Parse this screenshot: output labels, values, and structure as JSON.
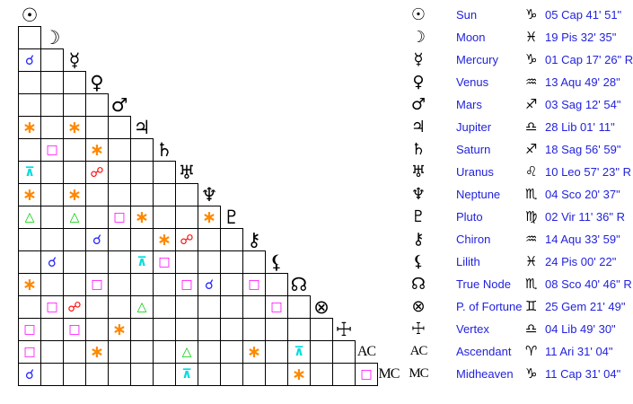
{
  "app": {
    "background": "#ffffff",
    "table_text_color": "#2222dd"
  },
  "aspect_grid": {
    "planets": [
      {
        "id": "sun",
        "glyph": "☉"
      },
      {
        "id": "moon",
        "glyph": "☽"
      },
      {
        "id": "mercury",
        "glyph": "☿"
      },
      {
        "id": "venus",
        "glyph": "♀"
      },
      {
        "id": "mars",
        "glyph": "♂"
      },
      {
        "id": "jupiter",
        "glyph": "♃"
      },
      {
        "id": "saturn",
        "glyph": "♄"
      },
      {
        "id": "uranus",
        "glyph": "♅"
      },
      {
        "id": "neptune",
        "glyph": "♆"
      },
      {
        "id": "pluto",
        "glyph": "♇"
      },
      {
        "id": "chiron",
        "glyph": "⚷"
      },
      {
        "id": "lilith",
        "glyph": "⚸"
      },
      {
        "id": "true-node",
        "glyph": "☊"
      },
      {
        "id": "fortune",
        "glyph": "⊗"
      },
      {
        "id": "vertex",
        "glyph": "☩"
      },
      {
        "id": "ascendant",
        "glyph": "AC"
      },
      {
        "id": "midheaven",
        "glyph": "MC"
      }
    ],
    "aspect_glyphs": {
      "conjunction": "☌",
      "sextile": "∗",
      "square": "□",
      "trine": "△",
      "opposition": "☍",
      "quincunx": "⊼"
    },
    "aspect_colors": {
      "conjunction": "#2222ff",
      "sextile": "#ff8800",
      "square": "#ff00ff",
      "trine": "#00cc00",
      "opposition": "#ff0000",
      "quincunx": "#00dddd"
    },
    "aspects": [
      {
        "row": 2,
        "col": 0,
        "type": "conjunction"
      },
      {
        "row": 5,
        "col": 0,
        "type": "sextile"
      },
      {
        "row": 5,
        "col": 2,
        "type": "sextile"
      },
      {
        "row": 6,
        "col": 1,
        "type": "square"
      },
      {
        "row": 6,
        "col": 3,
        "type": "sextile"
      },
      {
        "row": 7,
        "col": 0,
        "type": "quincunx"
      },
      {
        "row": 7,
        "col": 3,
        "type": "opposition"
      },
      {
        "row": 8,
        "col": 0,
        "type": "sextile"
      },
      {
        "row": 8,
        "col": 2,
        "type": "sextile"
      },
      {
        "row": 9,
        "col": 0,
        "type": "trine"
      },
      {
        "row": 9,
        "col": 2,
        "type": "trine"
      },
      {
        "row": 9,
        "col": 4,
        "type": "square"
      },
      {
        "row": 9,
        "col": 5,
        "type": "sextile"
      },
      {
        "row": 9,
        "col": 8,
        "type": "sextile"
      },
      {
        "row": 10,
        "col": 3,
        "type": "conjunction"
      },
      {
        "row": 10,
        "col": 6,
        "type": "sextile"
      },
      {
        "row": 10,
        "col": 7,
        "type": "opposition"
      },
      {
        "row": 11,
        "col": 1,
        "type": "conjunction"
      },
      {
        "row": 11,
        "col": 5,
        "type": "quincunx"
      },
      {
        "row": 11,
        "col": 6,
        "type": "square"
      },
      {
        "row": 12,
        "col": 0,
        "type": "sextile"
      },
      {
        "row": 12,
        "col": 3,
        "type": "square"
      },
      {
        "row": 12,
        "col": 7,
        "type": "square"
      },
      {
        "row": 12,
        "col": 8,
        "type": "conjunction"
      },
      {
        "row": 12,
        "col": 10,
        "type": "square"
      },
      {
        "row": 13,
        "col": 1,
        "type": "square"
      },
      {
        "row": 13,
        "col": 2,
        "type": "opposition"
      },
      {
        "row": 13,
        "col": 5,
        "type": "trine"
      },
      {
        "row": 13,
        "col": 11,
        "type": "square"
      },
      {
        "row": 14,
        "col": 0,
        "type": "square"
      },
      {
        "row": 14,
        "col": 2,
        "type": "square"
      },
      {
        "row": 14,
        "col": 4,
        "type": "sextile"
      },
      {
        "row": 15,
        "col": 0,
        "type": "square"
      },
      {
        "row": 15,
        "col": 3,
        "type": "sextile"
      },
      {
        "row": 15,
        "col": 7,
        "type": "trine"
      },
      {
        "row": 15,
        "col": 10,
        "type": "sextile"
      },
      {
        "row": 15,
        "col": 12,
        "type": "quincunx"
      },
      {
        "row": 16,
        "col": 0,
        "type": "conjunction"
      },
      {
        "row": 16,
        "col": 7,
        "type": "quincunx"
      },
      {
        "row": 16,
        "col": 12,
        "type": "sextile"
      },
      {
        "row": 16,
        "col": 15,
        "type": "square"
      }
    ]
  },
  "positions_table": {
    "rows": [
      {
        "glyph": "☉",
        "name": "Sun",
        "sign": "♑",
        "position": "05 Cap 41' 51\""
      },
      {
        "glyph": "☽",
        "name": "Moon",
        "sign": "♓",
        "position": "19 Pis 32' 35\""
      },
      {
        "glyph": "☿",
        "name": "Mercury",
        "sign": "♑",
        "position": "01 Cap 17' 26\" R"
      },
      {
        "glyph": "♀",
        "name": "Venus",
        "sign": "♒",
        "position": "13 Aqu 49' 28\""
      },
      {
        "glyph": "♂",
        "name": "Mars",
        "sign": "♐",
        "position": "03 Sag 12' 54\""
      },
      {
        "glyph": "♃",
        "name": "Jupiter",
        "sign": "♎",
        "position": "28 Lib 01' 11\""
      },
      {
        "glyph": "♄",
        "name": "Saturn",
        "sign": "♐",
        "position": "18 Sag 56' 59\""
      },
      {
        "glyph": "♅",
        "name": "Uranus",
        "sign": "♌",
        "position": "10 Leo 57' 23\" R"
      },
      {
        "glyph": "♆",
        "name": "Neptune",
        "sign": "♏",
        "position": "04 Sco 20' 37\""
      },
      {
        "glyph": "♇",
        "name": "Pluto",
        "sign": "♍",
        "position": "02 Vir 11' 36\" R"
      },
      {
        "glyph": "⚷",
        "name": "Chiron",
        "sign": "♒",
        "position": "14 Aqu 33' 59\""
      },
      {
        "glyph": "⚸",
        "name": "Lilith",
        "sign": "♓",
        "position": "24 Pis 00' 22\""
      },
      {
        "glyph": "☊",
        "name": "True Node",
        "sign": "♏",
        "position": "08 Sco 40' 46\" R"
      },
      {
        "glyph": "⊗",
        "name": "P. of Fortune",
        "sign": "♊",
        "position": "25 Gem 21' 49\""
      },
      {
        "glyph": "☩",
        "name": "Vertex",
        "sign": "♎",
        "position": "04 Lib 49' 30\""
      },
      {
        "glyph": "AC",
        "name": "Ascendant",
        "sign": "♈",
        "position": "11 Ari 31' 04\""
      },
      {
        "glyph": "MC",
        "name": "Midheaven",
        "sign": "♑",
        "position": "11 Cap 31' 04\""
      }
    ]
  }
}
